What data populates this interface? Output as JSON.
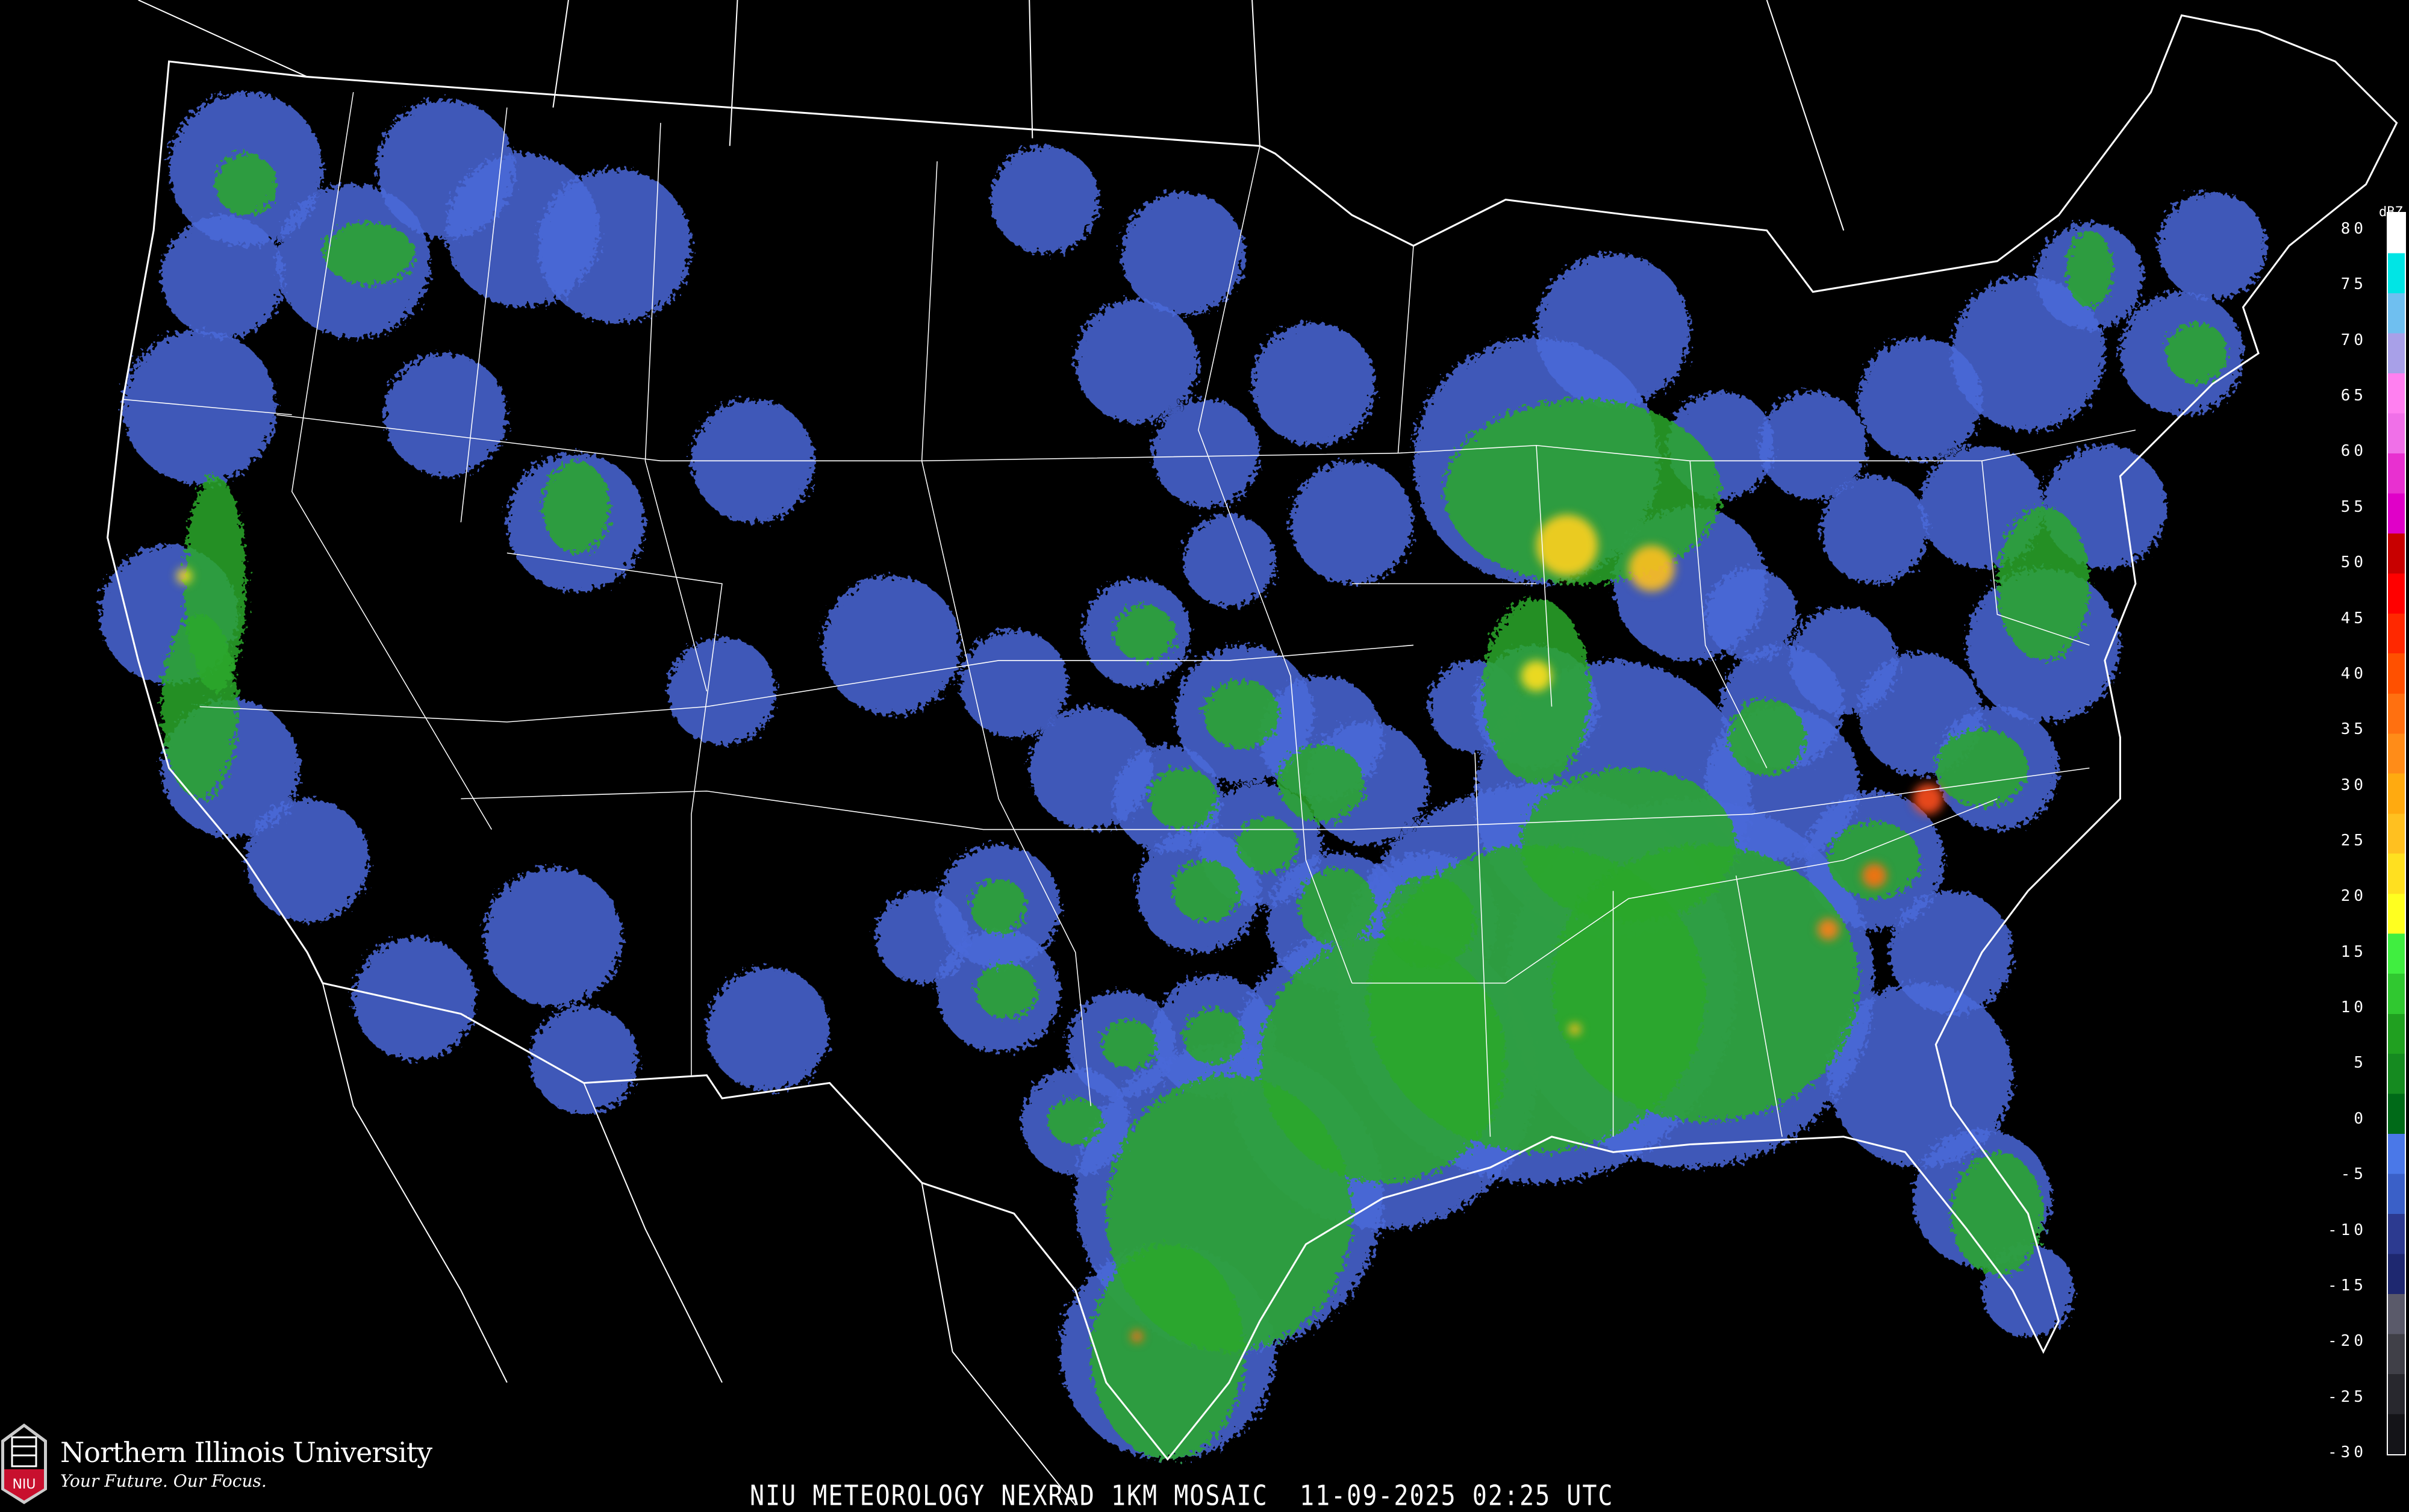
{
  "map": {
    "background": "#000000",
    "boundary_color": "#ffffff",
    "road_color": "#8a4a2a"
  },
  "title": "NIU METEOROLOGY NEXRAD 1KM MOSAIC  11-09-2025 02:25 UTC",
  "logo": {
    "name": "Northern Illinois University",
    "tagline": "Your Future. Our Focus.",
    "mark_text": "NIU",
    "brand_color": "#c8102e"
  },
  "legend": {
    "unit": "dBZ",
    "labels": [
      "80",
      "75",
      "70",
      "65",
      "60",
      "55",
      "50",
      "45",
      "40",
      "35",
      "30",
      "25",
      "20",
      "15",
      "10",
      "5",
      "0",
      "-5",
      "-10",
      "-15",
      "-20",
      "-25",
      "-30"
    ],
    "colors": [
      "#ffffff",
      "#00e5e5",
      "#6fbff0",
      "#a8a0e8",
      "#ff80f0",
      "#f070e8",
      "#e830d0",
      "#e000c8",
      "#c80000",
      "#ff0000",
      "#ff2800",
      "#ff5000",
      "#ff7010",
      "#ff8c18",
      "#ffaa10",
      "#ffc020",
      "#ffe020",
      "#ffff20",
      "#40ee40",
      "#30c830",
      "#20a020",
      "#158a20",
      "#006a18",
      "#4a78e8",
      "#3a60c8",
      "#2c3a90",
      "#1e2870",
      "#5a5a6a",
      "#404048",
      "#28282e",
      "#141418"
    ]
  }
}
